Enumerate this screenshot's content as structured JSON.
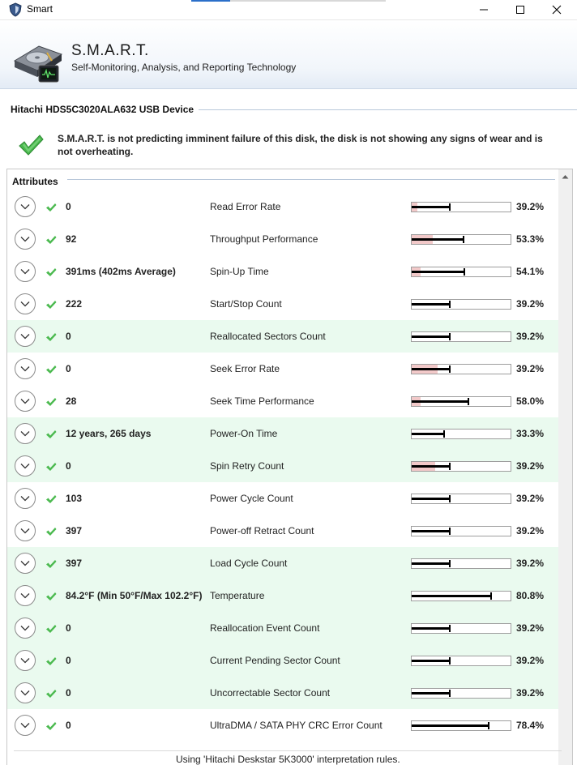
{
  "window": {
    "title": "Smart",
    "icons": {
      "app": "shield-icon",
      "minimize": "minimize-icon",
      "maximize": "maximize-icon",
      "close": "close-icon"
    }
  },
  "header": {
    "title": "S.M.A.R.T.",
    "subtitle": "Self-Monitoring, Analysis, and Reporting Technology",
    "icon": "disk-drive-icon"
  },
  "device": {
    "name": "Hitachi HDS5C3020ALA632 USB Device"
  },
  "status": {
    "icon": "check-icon",
    "message": "S.M.A.R.T. is not predicting imminent failure of this disk, the disk is not showing any signs of wear and is not overheating."
  },
  "attributes": {
    "heading": "Attributes",
    "rows": [
      {
        "value": "0",
        "name": "Read Error Rate",
        "percent": "39.2%",
        "level": 0.392,
        "threshold": 0.06,
        "highlight": false
      },
      {
        "value": "92",
        "name": "Throughput Performance",
        "percent": "53.3%",
        "level": 0.533,
        "threshold": 0.21,
        "highlight": false
      },
      {
        "value": "391ms (402ms Average)",
        "name": "Spin-Up Time",
        "percent": "54.1%",
        "level": 0.541,
        "threshold": 0.09,
        "highlight": false
      },
      {
        "value": "222",
        "name": "Start/Stop Count",
        "percent": "39.2%",
        "level": 0.392,
        "threshold": 0.0,
        "highlight": false
      },
      {
        "value": "0",
        "name": "Reallocated Sectors Count",
        "percent": "39.2%",
        "level": 0.392,
        "threshold": 0.0,
        "highlight": true
      },
      {
        "value": "0",
        "name": "Seek Error Rate",
        "percent": "39.2%",
        "level": 0.392,
        "threshold": 0.26,
        "highlight": false
      },
      {
        "value": "28",
        "name": "Seek Time Performance",
        "percent": "58.0%",
        "level": 0.58,
        "threshold": 0.09,
        "highlight": false
      },
      {
        "value": "12 years, 265 days",
        "name": "Power-On Time",
        "percent": "33.3%",
        "level": 0.333,
        "threshold": 0.0,
        "highlight": true
      },
      {
        "value": "0",
        "name": "Spin Retry Count",
        "percent": "39.2%",
        "level": 0.392,
        "threshold": 0.24,
        "highlight": true
      },
      {
        "value": "103",
        "name": "Power Cycle Count",
        "percent": "39.2%",
        "level": 0.392,
        "threshold": 0.0,
        "highlight": false
      },
      {
        "value": "397",
        "name": "Power-off Retract Count",
        "percent": "39.2%",
        "level": 0.392,
        "threshold": 0.0,
        "highlight": false
      },
      {
        "value": "397",
        "name": "Load Cycle Count",
        "percent": "39.2%",
        "level": 0.392,
        "threshold": 0.0,
        "highlight": true
      },
      {
        "value": "84.2°F (Min 50°F/Max 102.2°F)",
        "name": "Temperature",
        "percent": "80.8%",
        "level": 0.808,
        "threshold": 0.0,
        "highlight": true
      },
      {
        "value": "0",
        "name": "Reallocation Event Count",
        "percent": "39.2%",
        "level": 0.392,
        "threshold": 0.0,
        "highlight": true
      },
      {
        "value": "0",
        "name": "Current Pending Sector Count",
        "percent": "39.2%",
        "level": 0.392,
        "threshold": 0.0,
        "highlight": true
      },
      {
        "value": "0",
        "name": "Uncorrectable Sector Count",
        "percent": "39.2%",
        "level": 0.392,
        "threshold": 0.0,
        "highlight": true
      },
      {
        "value": "0",
        "name": "UltraDMA / SATA PHY CRC Error Count",
        "percent": "78.4%",
        "level": 0.784,
        "threshold": 0.0,
        "highlight": false
      }
    ]
  },
  "footer": {
    "text": "Using 'Hitachi Deskstar 5K3000' interpretation rules."
  },
  "colors": {
    "highlight": "#eafaef",
    "threshold": "#f2c9c9",
    "check": "#44b84a",
    "accent": "#2b6fc9"
  }
}
